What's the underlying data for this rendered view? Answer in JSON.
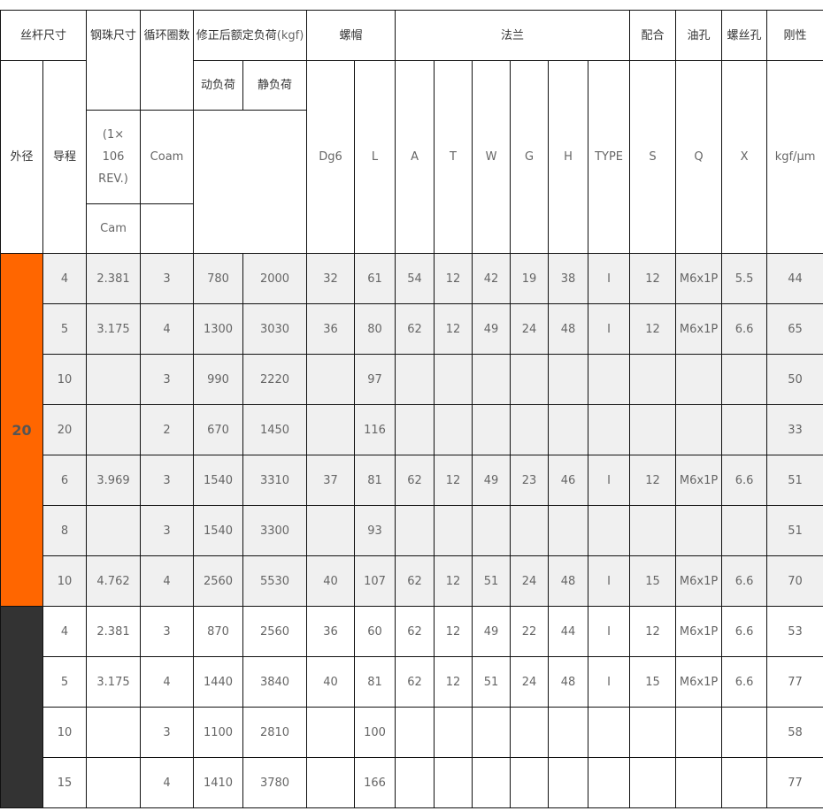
{
  "header": {
    "screw_size": "丝杆尺寸",
    "ball_size": "钢珠尺寸",
    "circuits": "循环圈数",
    "rated_load": "修正后额定负荷",
    "rated_load_unit": "(kgf)",
    "nut": "螺帽",
    "flange": "法兰",
    "fit": "配合",
    "oil_hole": "油孔",
    "bolt_hole": "螺丝孔",
    "stiffness": "刚性",
    "outer_dia": "外径",
    "lead": "导程",
    "dynamic_load": "动负荷",
    "static_load": "静负荷",
    "dynamic_note": "(1× 106 REV.)",
    "static_symbol": "Coam",
    "dynamic_symbol": "Cam",
    "dg6": "Dg6",
    "l": "L",
    "a": "A",
    "t": "T",
    "w": "W",
    "g": "G",
    "h": "H",
    "type": "TYPE",
    "s": "S",
    "q": "Q",
    "x": "X",
    "stiffness_unit": "kgf/μm"
  },
  "colors": {
    "group_20": "#ff6600",
    "group_next": "#333333",
    "row_shade": "#f0f0f0"
  },
  "groups": [
    {
      "outer_dia": "20",
      "rows": [
        [
          "4",
          "2.381",
          "3",
          "780",
          "2000",
          "32",
          "61",
          "54",
          "12",
          "42",
          "19",
          "38",
          "I",
          "12",
          "M6x1P",
          "5.5",
          "44"
        ],
        [
          "5",
          "3.175",
          "4",
          "1300",
          "3030",
          "36",
          "80",
          "62",
          "12",
          "49",
          "24",
          "48",
          "I",
          "12",
          "M6x1P",
          "6.6",
          "65"
        ],
        [
          "10",
          "",
          "3",
          "990",
          "2220",
          "",
          "97",
          "",
          "",
          "",
          "",
          "",
          "",
          "",
          "",
          "",
          "50"
        ],
        [
          "20",
          "",
          "2",
          "670",
          "1450",
          "",
          "116",
          "",
          "",
          "",
          "",
          "",
          "",
          "",
          "",
          "",
          "33"
        ],
        [
          "6",
          "3.969",
          "3",
          "1540",
          "3310",
          "37",
          "81",
          "62",
          "12",
          "49",
          "23",
          "46",
          "I",
          "12",
          "M6x1P",
          "6.6",
          "51"
        ],
        [
          "8",
          "",
          "3",
          "1540",
          "3300",
          "",
          "93",
          "",
          "",
          "",
          "",
          "",
          "",
          "",
          "",
          "",
          "51"
        ],
        [
          "10",
          "4.762",
          "4",
          "2560",
          "5530",
          "40",
          "107",
          "62",
          "12",
          "51",
          "24",
          "48",
          "I",
          "15",
          "M6x1P",
          "6.6",
          "70"
        ]
      ]
    },
    {
      "outer_dia": "",
      "rows": [
        [
          "4",
          "2.381",
          "3",
          "870",
          "2560",
          "36",
          "60",
          "62",
          "12",
          "49",
          "22",
          "44",
          "I",
          "12",
          "M6x1P",
          "6.6",
          "53"
        ],
        [
          "5",
          "3.175",
          "4",
          "1440",
          "3840",
          "40",
          "81",
          "62",
          "12",
          "51",
          "24",
          "48",
          "I",
          "15",
          "M6x1P",
          "6.6",
          "77"
        ],
        [
          "10",
          "",
          "3",
          "1100",
          "2810",
          "",
          "100",
          "",
          "",
          "",
          "",
          "",
          "",
          "",
          "",
          "",
          "58"
        ],
        [
          "15",
          "",
          "4",
          "1410",
          "3780",
          "",
          "166",
          "",
          "",
          "",
          "",
          "",
          "",
          "",
          "",
          "",
          "77"
        ]
      ]
    }
  ]
}
